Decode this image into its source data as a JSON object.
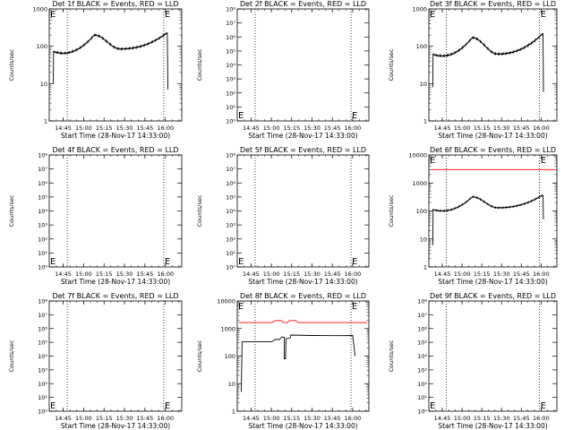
{
  "figure": {
    "x_tick_labels": [
      "14:45",
      "15:00",
      "15:15",
      "15:30",
      "15:45",
      "16:00"
    ],
    "xlabel": "Start Time (28-Nov-17 14:33:00)",
    "ylabel": "Counts/sec",
    "edge_marker": "E",
    "colors": {
      "events": "#000000",
      "lld": "#ff0000"
    }
  },
  "chart_data": [
    {
      "type": "line",
      "title": "Det 1f BLACK = Events, RED = LLD",
      "yscale": "log",
      "ylim": [
        1,
        1000
      ],
      "y_ticks": [
        {
          "v": 1,
          "label": "1"
        },
        {
          "v": 10,
          "label": "10"
        },
        {
          "v": 100,
          "label": "100"
        },
        {
          "v": 1000,
          "label": "1000"
        }
      ],
      "xlim": [
        14.58,
        16.2
      ],
      "markers_x": [
        14.8,
        15.98
      ],
      "edge_label_pos": "top",
      "series": [
        {
          "color": "black",
          "shape": "flux",
          "start": 14.63,
          "end": 16.03,
          "low_start": 10,
          "low_end": 7,
          "level_a": 65,
          "peak1": 200,
          "t_peak1": 15.13,
          "dip": 85,
          "t_dip": 15.45,
          "peak2": 230,
          "t_peak2": 16.02
        }
      ]
    },
    {
      "type": "line",
      "title": "Det 2f BLACK = Events, RED = LLD",
      "yscale": "log",
      "ylim": [
        1,
        100000000
      ],
      "y_ticks": [
        {
          "v": 1,
          "label": "10⁰"
        },
        {
          "v": 10,
          "label": "10¹"
        },
        {
          "v": 100,
          "label": "10²"
        },
        {
          "v": 1000,
          "label": "10³"
        },
        {
          "v": 10000,
          "label": "10⁴"
        },
        {
          "v": 100000,
          "label": "10⁵"
        },
        {
          "v": 1000000,
          "label": "10⁶"
        },
        {
          "v": 10000000,
          "label": "10⁷"
        },
        {
          "v": 100000000,
          "label": "10⁸"
        }
      ],
      "xlim": [
        14.58,
        16.2
      ],
      "markers_x": [
        14.8,
        15.98
      ],
      "edge_label_pos": "bottom",
      "series": []
    },
    {
      "type": "line",
      "title": "Det 3f BLACK = Events, RED = LLD",
      "yscale": "log",
      "ylim": [
        1,
        1000
      ],
      "y_ticks": [
        {
          "v": 1,
          "label": "1"
        },
        {
          "v": 10,
          "label": "10"
        },
        {
          "v": 100,
          "label": "100"
        },
        {
          "v": 1000,
          "label": "1000"
        }
      ],
      "xlim": [
        14.58,
        16.2
      ],
      "markers_x": [
        14.8,
        15.98
      ],
      "edge_label_pos": "top",
      "series": [
        {
          "color": "black",
          "shape": "flux",
          "start": 14.63,
          "end": 16.03,
          "low_start": 8,
          "low_end": 6,
          "level_a": 55,
          "peak1": 170,
          "t_peak1": 15.13,
          "dip": 62,
          "t_dip": 15.45,
          "peak2": 220,
          "t_peak2": 16.02
        }
      ]
    },
    {
      "type": "line",
      "title": "Det 4f BLACK = Events, RED = LLD",
      "yscale": "log",
      "ylim": [
        1,
        100000000
      ],
      "y_ticks": [
        {
          "v": 1,
          "label": "10⁰"
        },
        {
          "v": 10,
          "label": "10¹"
        },
        {
          "v": 100,
          "label": "10²"
        },
        {
          "v": 1000,
          "label": "10³"
        },
        {
          "v": 10000,
          "label": "10⁴"
        },
        {
          "v": 100000,
          "label": "10⁵"
        },
        {
          "v": 1000000,
          "label": "10⁶"
        },
        {
          "v": 10000000,
          "label": "10⁷"
        },
        {
          "v": 100000000,
          "label": "10⁸"
        }
      ],
      "xlim": [
        14.58,
        16.2
      ],
      "markers_x": [
        14.8,
        15.98
      ],
      "edge_label_pos": "bottom",
      "series": []
    },
    {
      "type": "line",
      "title": "Det 5f BLACK = Events, RED = LLD",
      "yscale": "log",
      "ylim": [
        1,
        100000000
      ],
      "y_ticks": [
        {
          "v": 1,
          "label": "10⁰"
        },
        {
          "v": 10,
          "label": "10¹"
        },
        {
          "v": 100,
          "label": "10²"
        },
        {
          "v": 1000,
          "label": "10³"
        },
        {
          "v": 10000,
          "label": "10⁴"
        },
        {
          "v": 100000,
          "label": "10⁵"
        },
        {
          "v": 1000000,
          "label": "10⁶"
        },
        {
          "v": 10000000,
          "label": "10⁷"
        },
        {
          "v": 100000000,
          "label": "10⁸"
        }
      ],
      "xlim": [
        14.58,
        16.2
      ],
      "markers_x": [
        14.8,
        15.98
      ],
      "edge_label_pos": "bottom",
      "series": []
    },
    {
      "type": "line",
      "title": "Det 6f BLACK = Events, RED = LLD",
      "yscale": "log",
      "ylim": [
        1,
        10000
      ],
      "y_ticks": [
        {
          "v": 1,
          "label": "1"
        },
        {
          "v": 10,
          "label": "10"
        },
        {
          "v": 100,
          "label": "100"
        },
        {
          "v": 1000,
          "label": "1000"
        },
        {
          "v": 10000,
          "label": "10000"
        }
      ],
      "xlim": [
        14.58,
        16.2
      ],
      "markers_x": [
        14.8,
        15.98
      ],
      "edge_label_pos": "top",
      "series": [
        {
          "color": "red",
          "shape": "flat",
          "start": 14.6,
          "end": 16.18,
          "level": 3000
        },
        {
          "color": "black",
          "shape": "flux",
          "start": 14.63,
          "end": 16.03,
          "low_start": 6,
          "low_end": 50,
          "level_a": 100,
          "peak1": 320,
          "t_peak1": 15.13,
          "dip": 130,
          "t_dip": 15.45,
          "peak2": 370,
          "t_peak2": 16.02
        }
      ]
    },
    {
      "type": "line",
      "title": "Det 7f BLACK = Events, RED = LLD",
      "yscale": "log",
      "ylim": [
        1,
        100000000
      ],
      "y_ticks": [
        {
          "v": 1,
          "label": "10⁰"
        },
        {
          "v": 10,
          "label": "10¹"
        },
        {
          "v": 100,
          "label": "10²"
        },
        {
          "v": 1000,
          "label": "10³"
        },
        {
          "v": 10000,
          "label": "10⁴"
        },
        {
          "v": 100000,
          "label": "10⁵"
        },
        {
          "v": 1000000,
          "label": "10⁶"
        },
        {
          "v": 10000000,
          "label": "10⁷"
        },
        {
          "v": 100000000,
          "label": "10⁸"
        }
      ],
      "xlim": [
        14.58,
        16.2
      ],
      "markers_x": [
        14.8,
        15.98
      ],
      "edge_label_pos": "bottom",
      "series": []
    },
    {
      "type": "line",
      "title": "Det 8f BLACK = Events, RED = LLD",
      "yscale": "log",
      "ylim": [
        1,
        10000
      ],
      "y_ticks": [
        {
          "v": 1,
          "label": "1"
        },
        {
          "v": 10,
          "label": "10"
        },
        {
          "v": 100,
          "label": "100"
        },
        {
          "v": 1000,
          "label": "1000"
        },
        {
          "v": 10000,
          "label": "10000"
        }
      ],
      "xlim": [
        14.58,
        16.2
      ],
      "markers_x": [
        14.8,
        15.98
      ],
      "edge_label_pos": "top",
      "series": [
        {
          "color": "red",
          "shape": "points",
          "points": [
            [
              14.6,
              1650
            ],
            [
              14.8,
              1650
            ],
            [
              15.0,
              1650
            ],
            [
              15.05,
              1950
            ],
            [
              15.12,
              1950
            ],
            [
              15.15,
              1650
            ],
            [
              15.2,
              1650
            ],
            [
              15.22,
              1950
            ],
            [
              15.3,
              1950
            ],
            [
              15.33,
              1650
            ],
            [
              15.6,
              1650
            ],
            [
              15.9,
              1650
            ],
            [
              16.18,
              1650
            ]
          ]
        },
        {
          "color": "black",
          "shape": "points",
          "points": [
            [
              14.63,
              5
            ],
            [
              14.64,
              330
            ],
            [
              14.8,
              330
            ],
            [
              15.0,
              330
            ],
            [
              15.05,
              400
            ],
            [
              15.1,
              400
            ],
            [
              15.13,
              500
            ],
            [
              15.16,
              480
            ],
            [
              15.16,
              80
            ],
            [
              15.175,
              80
            ],
            [
              15.18,
              430
            ],
            [
              15.23,
              450
            ],
            [
              15.24,
              580
            ],
            [
              15.5,
              560
            ],
            [
              15.8,
              550
            ],
            [
              16.0,
              560
            ],
            [
              16.03,
              100
            ]
          ]
        }
      ]
    },
    {
      "type": "line",
      "title": "Det 9f BLACK = Events, RED = LLD",
      "yscale": "log",
      "ylim": [
        1,
        100000000
      ],
      "y_ticks": [
        {
          "v": 1,
          "label": "10⁰"
        },
        {
          "v": 10,
          "label": "10¹"
        },
        {
          "v": 100,
          "label": "10²"
        },
        {
          "v": 1000,
          "label": "10³"
        },
        {
          "v": 10000,
          "label": "10⁴"
        },
        {
          "v": 100000,
          "label": "10⁵"
        },
        {
          "v": 1000000,
          "label": "10⁶"
        },
        {
          "v": 10000000,
          "label": "10⁷"
        },
        {
          "v": 100000000,
          "label": "10⁸"
        }
      ],
      "xlim": [
        14.58,
        16.2
      ],
      "markers_x": [
        14.8,
        15.98
      ],
      "edge_label_pos": "bottom",
      "series": []
    }
  ]
}
